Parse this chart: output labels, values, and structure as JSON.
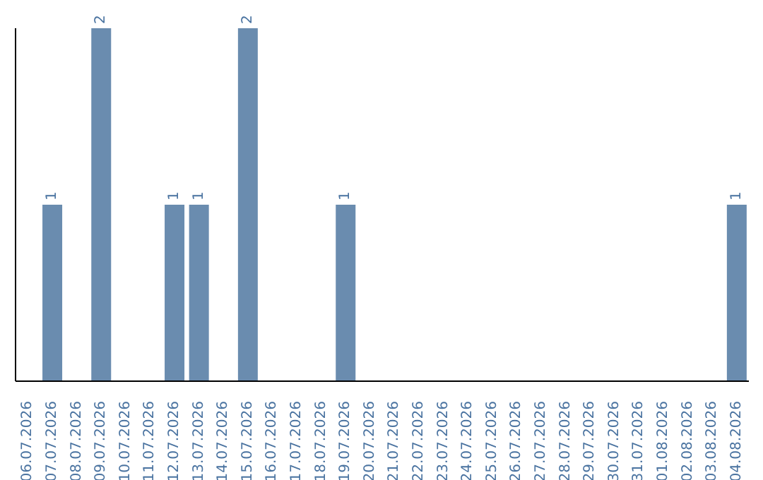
{
  "chart_data": {
    "type": "bar",
    "categories": [
      "06.07.2026",
      "07.07.2026",
      "08.07.2026",
      "09.07.2026",
      "10.07.2026",
      "11.07.2026",
      "12.07.2026",
      "13.07.2026",
      "14.07.2026",
      "15.07.2026",
      "16.07.2026",
      "17.07.2026",
      "18.07.2026",
      "19.07.2026",
      "20.07.2026",
      "21.07.2026",
      "22.07.2026",
      "23.07.2026",
      "24.07.2026",
      "25.07.2026",
      "26.07.2026",
      "27.07.2026",
      "28.07.2026",
      "29.07.2026",
      "30.07.2026",
      "31.07.2026",
      "01.08.2026",
      "02.08.2026",
      "03.08.2026",
      "04.08.2026"
    ],
    "values": [
      0,
      1,
      0,
      2,
      0,
      0,
      1,
      1,
      0,
      2,
      0,
      0,
      0,
      1,
      0,
      0,
      0,
      0,
      0,
      0,
      0,
      0,
      0,
      0,
      0,
      0,
      0,
      0,
      0,
      1
    ],
    "value_labels": [
      null,
      "1",
      null,
      "2",
      null,
      null,
      "1",
      "1",
      null,
      "2",
      null,
      null,
      null,
      "1",
      null,
      null,
      null,
      null,
      null,
      null,
      null,
      null,
      null,
      null,
      null,
      null,
      null,
      null,
      null,
      "1"
    ],
    "color": "#6a8caf",
    "ylim": [
      0,
      2
    ],
    "tick_labels": "x",
    "grid": false,
    "legend": false
  }
}
